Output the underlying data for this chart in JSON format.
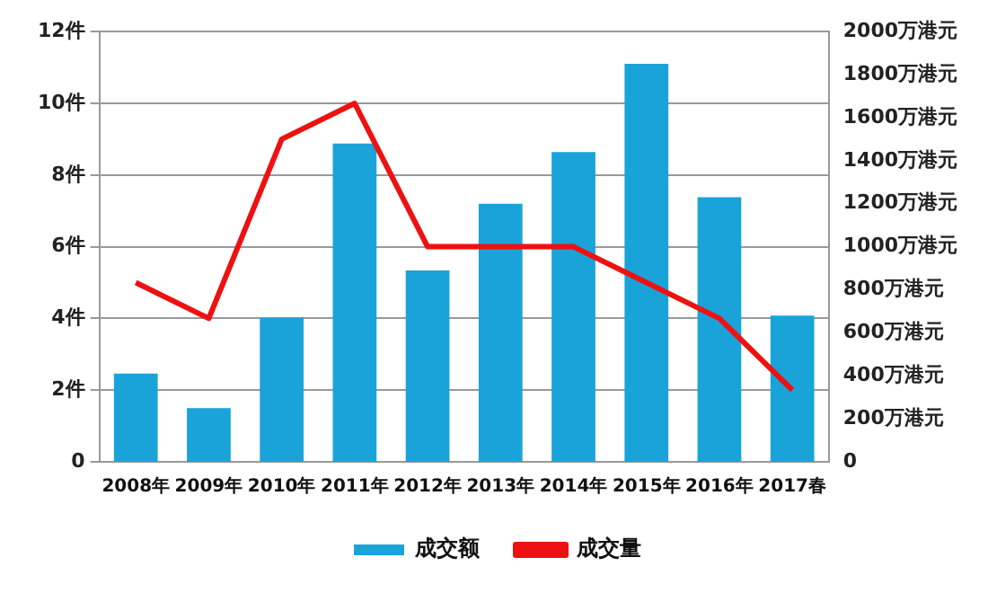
{
  "chart_data": {
    "type": "bar",
    "categories": [
      "2008年",
      "2009年",
      "2010年",
      "2011年",
      "2012年",
      "2013年",
      "2014年",
      "2015年",
      "2016年",
      "2017春"
    ],
    "series": [
      {
        "name": "成交额",
        "axis": "y2",
        "color": "#1aa3d9",
        "values": [
          410,
          250,
          670,
          1480,
          890,
          1200,
          1440,
          1850,
          1230,
          680
        ]
      },
      {
        "name": "成交量",
        "type": "line",
        "axis": "y",
        "color": "#ee1111",
        "values": [
          5,
          4,
          9,
          10,
          6,
          6,
          6,
          5,
          4,
          2
        ]
      }
    ],
    "ylim": [
      0,
      12
    ],
    "yticks": [
      {
        "value": 0,
        "label": "0"
      },
      {
        "value": 2,
        "label": "2件"
      },
      {
        "value": 4,
        "label": "4件"
      },
      {
        "value": 6,
        "label": "6件"
      },
      {
        "value": 8,
        "label": "8件"
      },
      {
        "value": 10,
        "label": "10件"
      },
      {
        "value": 12,
        "label": "12件"
      }
    ],
    "y2lim": [
      0,
      2000
    ],
    "y2ticks": [
      {
        "value": 0,
        "label": "0"
      },
      {
        "value": 200,
        "label": "200万港元"
      },
      {
        "value": 400,
        "label": "400万港元"
      },
      {
        "value": 600,
        "label": "600万港元"
      },
      {
        "value": 800,
        "label": "800万港元"
      },
      {
        "value": 1000,
        "label": "1000万港元"
      },
      {
        "value": 1200,
        "label": "1200万港元"
      },
      {
        "value": 1400,
        "label": "1400万港元"
      },
      {
        "value": 1600,
        "label": "1600万港元"
      },
      {
        "value": 1800,
        "label": "1800万港元"
      },
      {
        "value": 2000,
        "label": "2000万港元"
      }
    ],
    "grid": "y",
    "legend": "bottom",
    "marker": "none",
    "line_style": "solid"
  }
}
